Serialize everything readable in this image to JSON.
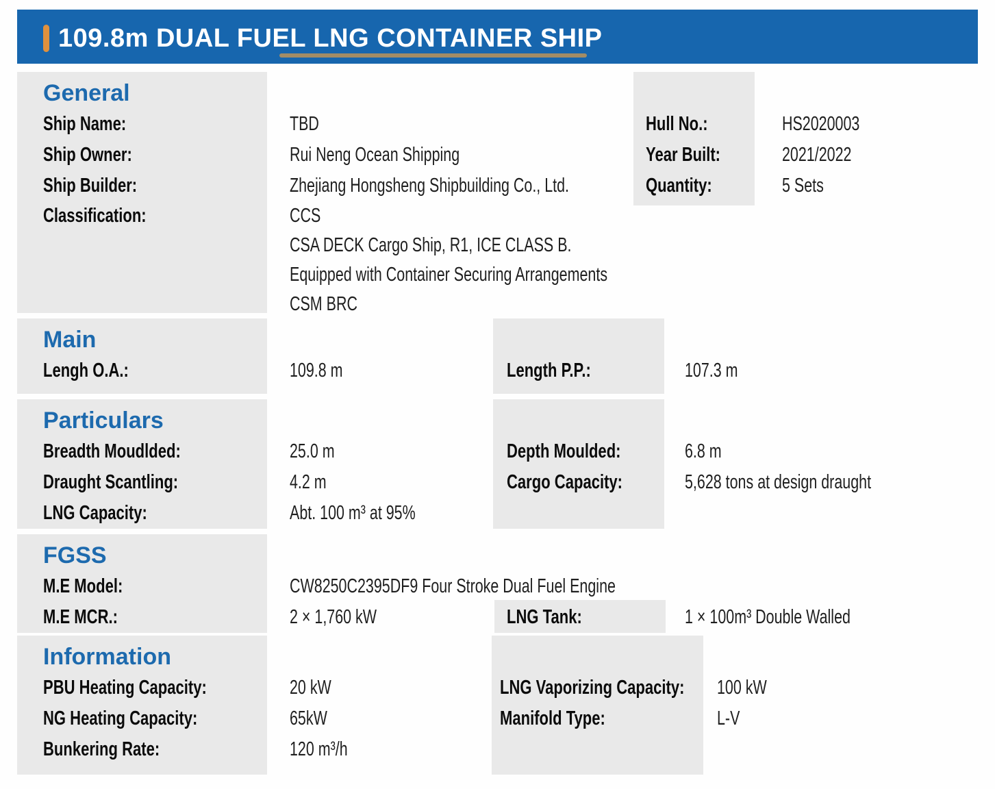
{
  "header": {
    "title": "109.8m DUAL FUEL LNG CONTAINER SHIP"
  },
  "colors": {
    "header_blue": "#1766AE",
    "title_blue": "#1D6AAE",
    "accent_orange": "#E0913D",
    "underline_tan": "#A28C66",
    "block_gray": "#E9E9E9",
    "label_black": "#0B0B0B",
    "value_black": "#1F1F1F"
  },
  "sections": {
    "general": {
      "title": "General",
      "rows": [
        {
          "label": "Ship Name:",
          "value": "TBD",
          "label2": "Hull No.:",
          "value2": "HS2020003"
        },
        {
          "label": "Ship Owner:",
          "value": "Rui Neng Ocean Shipping",
          "label2": "Year Built:",
          "value2": "2021/2022"
        },
        {
          "label": "Ship Builder:",
          "value": "Zhejiang Hongsheng Shipbuilding Co., Ltd.",
          "label2": "Quantity:",
          "value2": "5 Sets"
        },
        {
          "label": "Classification:",
          "value": "CCS"
        }
      ],
      "classification_extra": [
        "CSA DECK Cargo Ship, R1, ICE CLASS B.",
        "Equipped with Container Securing Arrangements",
        "CSM BRC"
      ]
    },
    "main": {
      "title": "Main",
      "rows": [
        {
          "label": "Lengh O.A.:",
          "value": "109.8 m",
          "label2": "Length P.P.:",
          "value2": "107.3 m"
        }
      ]
    },
    "particulars": {
      "title": "Particulars",
      "rows": [
        {
          "label": "Breadth Moudlded:",
          "value": "25.0 m",
          "label2": "Depth Moulded:",
          "value2": "6.8 m"
        },
        {
          "label": "Draught Scantling:",
          "value": "4.2 m",
          "label2": "Cargo Capacity:",
          "value2": "5,628 tons at design draught"
        },
        {
          "label": "LNG Capacity:",
          "value": "Abt. 100 m³ at 95%",
          "label2": "",
          "value2": ""
        }
      ]
    },
    "fgss": {
      "title": "FGSS",
      "rows": [
        {
          "label": "M.E Model:",
          "value": "CW8250C2395DF9 Four Stroke Dual Fuel Engine"
        },
        {
          "label": "M.E MCR.:",
          "value": "2 × 1,760 kW",
          "label2": "LNG Tank:",
          "value2": "1 × 100m³ Double Walled"
        }
      ]
    },
    "information": {
      "title": "Information",
      "rows": [
        {
          "label": "PBU Heating Capacity:",
          "value": "20 kW",
          "label2": "LNG Vaporizing Capacity:",
          "value2": "100 kW"
        },
        {
          "label": "NG Heating Capacity:",
          "value": "65kW",
          "label2": "Manifold Type:",
          "value2": "L-V"
        },
        {
          "label": "Bunkering Rate:",
          "value": "120 m³/h",
          "label2": "",
          "value2": ""
        }
      ]
    }
  }
}
